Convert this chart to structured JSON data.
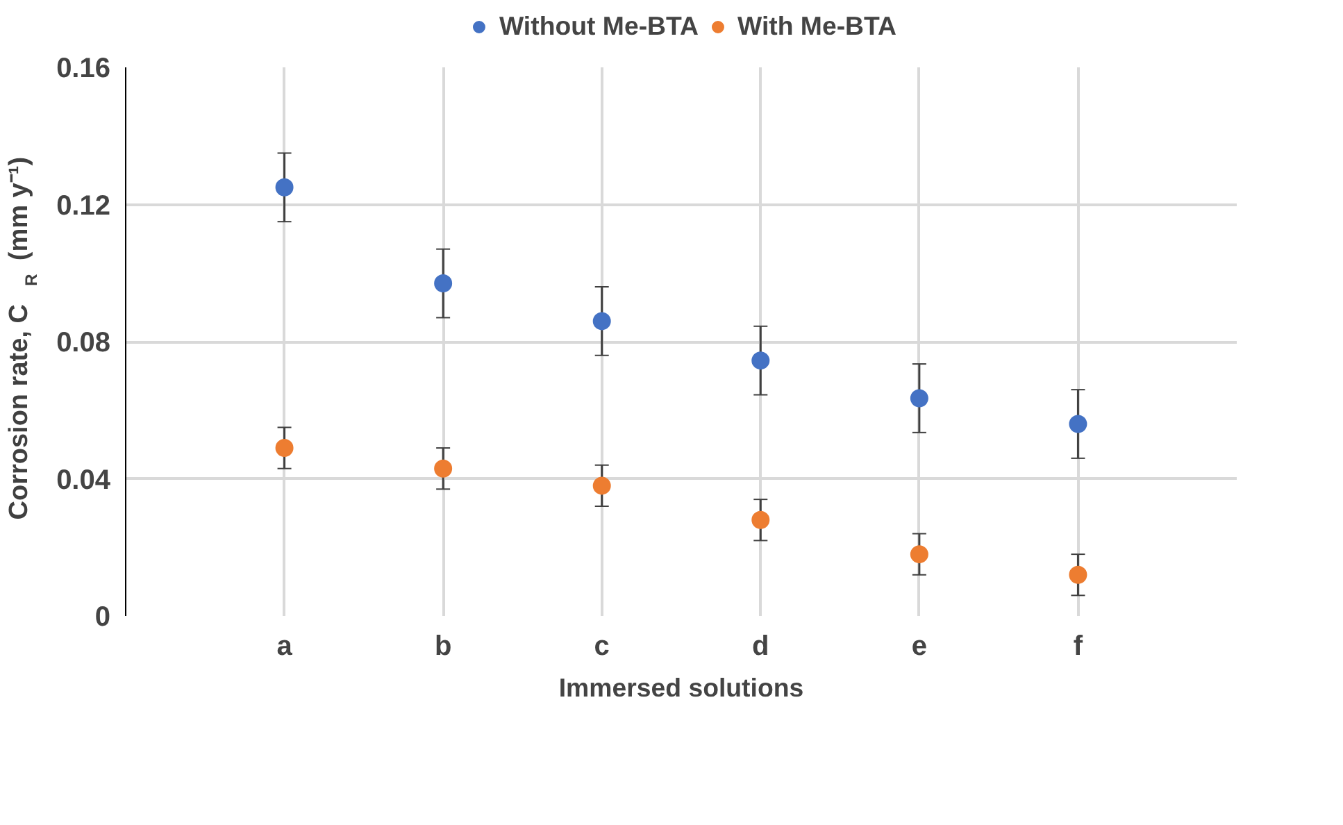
{
  "chart_data": {
    "type": "scatter",
    "xlabel": "Immersed solutions",
    "ylabel": "Corrosion rate, C$_{R}$ (mm y⁻¹)",
    "categories": [
      "a",
      "b",
      "c",
      "d",
      "e",
      "f"
    ],
    "series": [
      {
        "name": "Without Me-BTA",
        "color": "#4472c4",
        "values": [
          0.125,
          0.097,
          0.086,
          0.0745,
          0.0635,
          0.056
        ],
        "errors": [
          0.01,
          0.01,
          0.01,
          0.01,
          0.01,
          0.01
        ]
      },
      {
        "name": "With Me-BTA",
        "color": "#ed7d31",
        "values": [
          0.049,
          0.043,
          0.038,
          0.028,
          0.018,
          0.012
        ],
        "errors": [
          0.006,
          0.006,
          0.006,
          0.006,
          0.006,
          0.006
        ]
      }
    ],
    "ylim": [
      0,
      0.16
    ],
    "yticks": [
      0,
      0.04,
      0.08,
      0.12,
      0.16
    ],
    "grid": true,
    "legend": "top",
    "marker": "circle"
  }
}
